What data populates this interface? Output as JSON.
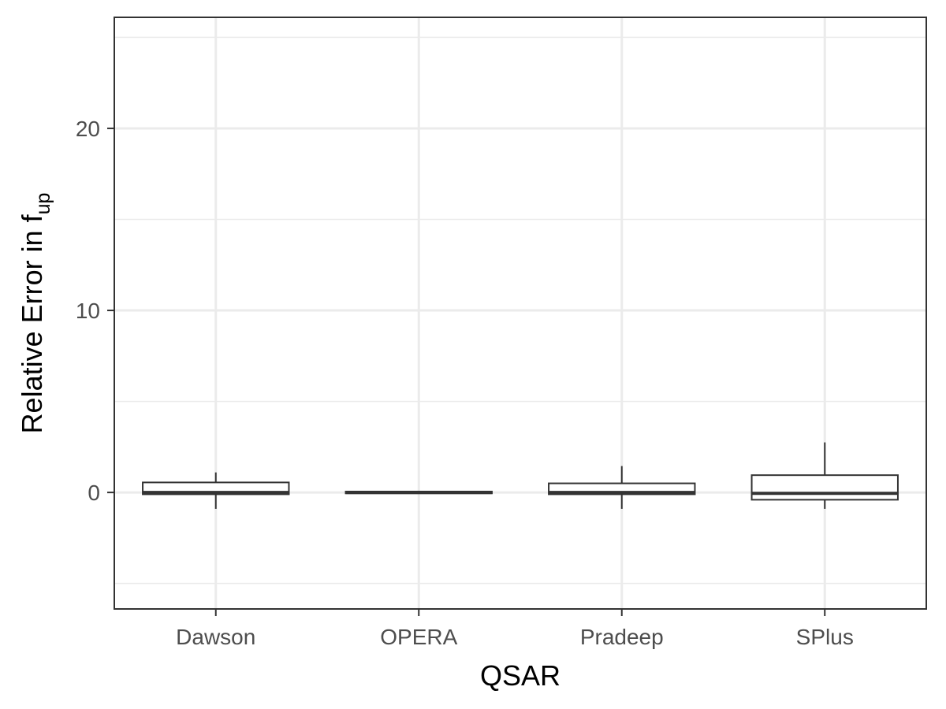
{
  "chart_data": {
    "type": "box",
    "title": "",
    "xlabel": "QSAR",
    "ylabel": {
      "main": "Relative Error in f",
      "subscript": "up"
    },
    "categories": [
      "Dawson",
      "OPERA",
      "Pradeep",
      "SPlus"
    ],
    "ylim": [
      -6.4,
      26.1
    ],
    "yticks": [
      0,
      10,
      20
    ],
    "grid": true,
    "legend": "none",
    "boxes": [
      {
        "category": "Dawson",
        "whisker_low": -0.9,
        "q1": -0.1,
        "median": 0.0,
        "q3": 0.55,
        "whisker_high": 1.1
      },
      {
        "category": "OPERA",
        "whisker_low": -0.05,
        "q1": -0.05,
        "median": 0.0,
        "q3": 0.05,
        "whisker_high": 0.05
      },
      {
        "category": "Pradeep",
        "whisker_low": -0.9,
        "q1": -0.1,
        "median": 0.0,
        "q3": 0.5,
        "whisker_high": 1.45
      },
      {
        "category": "SPlus",
        "whisker_low": -0.9,
        "q1": -0.4,
        "median": -0.05,
        "q3": 0.95,
        "whisker_high": 2.75
      }
    ],
    "colors": {
      "panel_border": "#333333",
      "grid": "#ebebeb",
      "box_line": "#333333",
      "box_fill": "#ffffff",
      "tick": "#333333"
    }
  }
}
